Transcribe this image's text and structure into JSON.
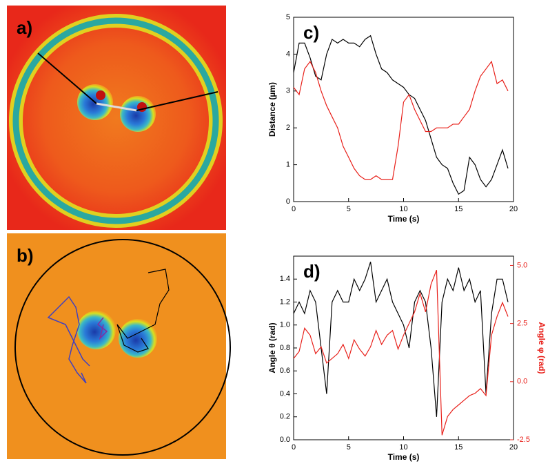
{
  "panel_labels": [
    "a)",
    "b)"
  ],
  "chart_data": [
    {
      "type": "line",
      "label": "c)",
      "x_label": "Time (s)",
      "y_label": "Distance (µm)",
      "x": [
        0,
        0.5,
        1,
        1.5,
        2,
        2.5,
        3,
        3.5,
        4,
        4.5,
        5,
        5.5,
        6,
        6.5,
        7,
        7.5,
        8,
        8.5,
        9,
        9.5,
        10,
        10.5,
        11,
        11.5,
        12,
        12.5,
        13,
        13.5,
        14,
        14.5,
        15,
        15.5,
        16,
        16.5,
        17,
        17.5,
        18,
        18.5,
        19,
        19.5
      ],
      "series": [
        {
          "color": "#000000",
          "values": [
            3.5,
            4.3,
            4.3,
            3.9,
            3.4,
            3.3,
            4.0,
            4.4,
            4.3,
            4.4,
            4.3,
            4.3,
            4.2,
            4.4,
            4.5,
            4.0,
            3.6,
            3.5,
            3.3,
            3.2,
            3.1,
            2.9,
            2.8,
            2.5,
            2.2,
            1.7,
            1.2,
            1.0,
            0.9,
            0.5,
            0.2,
            0.3,
            1.2,
            1.0,
            0.6,
            0.4,
            0.6,
            1.0,
            1.4,
            0.9
          ]
        },
        {
          "color": "#e8201a",
          "values": [
            3.1,
            2.9,
            3.6,
            3.8,
            3.5,
            3.0,
            2.6,
            2.3,
            2.0,
            1.5,
            1.2,
            0.9,
            0.7,
            0.6,
            0.6,
            0.7,
            0.6,
            0.6,
            0.6,
            1.5,
            2.7,
            2.9,
            2.5,
            2.2,
            1.9,
            1.9,
            2.0,
            2.0,
            2.0,
            2.1,
            2.1,
            2.3,
            2.5,
            3.0,
            3.4,
            3.6,
            3.8,
            3.2,
            3.3,
            3.0
          ]
        }
      ],
      "xlim": [
        0,
        20
      ],
      "xticks": [
        0,
        5,
        10,
        15,
        20
      ],
      "ylim": [
        0,
        5
      ],
      "yticks": [
        0,
        1,
        2,
        3,
        4,
        5
      ]
    },
    {
      "type": "line",
      "label": "d)",
      "x_label": "Time (s)",
      "y_label": "Angle θ (rad)",
      "y2_label": "Angle φ (rad)",
      "y2_color": "#e8201a",
      "x": [
        0,
        0.5,
        1,
        1.5,
        2,
        2.5,
        3,
        3.5,
        4,
        4.5,
        5,
        5.5,
        6,
        6.5,
        7,
        7.5,
        8,
        8.5,
        9,
        9.5,
        10,
        10.5,
        11,
        11.5,
        12,
        12.5,
        13,
        13.5,
        14,
        14.5,
        15,
        15.5,
        16,
        16.5,
        17,
        17.5,
        18,
        18.5,
        19,
        19.5
      ],
      "series": [
        {
          "color": "#000000",
          "values": [
            1.1,
            1.2,
            1.1,
            1.3,
            1.2,
            0.8,
            0.4,
            1.2,
            1.3,
            1.2,
            1.2,
            1.4,
            1.3,
            1.4,
            1.55,
            1.2,
            1.3,
            1.4,
            1.2,
            1.1,
            1.0,
            0.8,
            1.2,
            1.3,
            1.2,
            0.8,
            0.2,
            1.2,
            1.4,
            1.3,
            1.5,
            1.3,
            1.4,
            1.2,
            1.3,
            0.4,
            1.1,
            1.4,
            1.4,
            1.2
          ]
        },
        {
          "color": "#e8201a",
          "axis": "y2",
          "values": [
            1.0,
            1.3,
            2.3,
            2.0,
            1.2,
            1.5,
            0.8,
            1.0,
            1.2,
            1.6,
            1.0,
            1.8,
            1.4,
            1.1,
            1.5,
            2.2,
            1.6,
            2.0,
            2.2,
            1.4,
            2.0,
            2.5,
            3.0,
            3.8,
            3.0,
            4.2,
            4.8,
            -2.3,
            -1.5,
            -1.2,
            -1.0,
            -0.8,
            -0.6,
            -0.5,
            -0.3,
            -0.6,
            2.0,
            2.8,
            3.4,
            2.8
          ]
        }
      ],
      "xlim": [
        0,
        20
      ],
      "xticks": [
        0,
        5,
        10,
        15,
        20
      ],
      "ylim": [
        0,
        1.6
      ],
      "yticks": [
        {
          "value": 0,
          "label": "0.0"
        },
        0.2,
        0.4,
        0.6,
        0.8,
        {
          "value": 1,
          "label": "1.0"
        },
        1.2,
        1.4
      ],
      "y2lim": [
        -2.5,
        5.4
      ],
      "y2ticks": [
        {
          "value": -2.5,
          "label": "-2.5"
        },
        {
          "value": 0,
          "label": "0.0"
        },
        {
          "value": 2.5,
          "label": "2.5"
        },
        {
          "value": 5,
          "label": "5.0"
        }
      ]
    }
  ]
}
